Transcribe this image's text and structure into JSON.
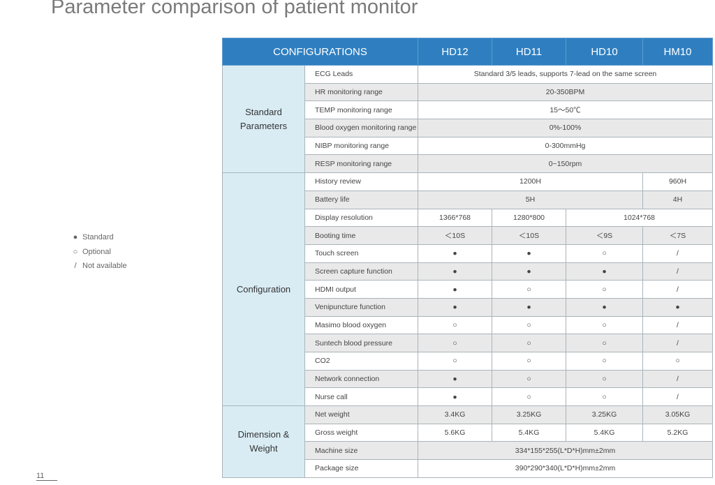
{
  "title": "Parameter comparison of patient monitor",
  "legend": [
    {
      "symbol": "●",
      "label": "Standard"
    },
    {
      "symbol": "○",
      "label": "Optional"
    },
    {
      "symbol": "/",
      "label": "Not available"
    }
  ],
  "page_number": "11",
  "table": {
    "header": [
      "CONFIGURATIONS",
      "HD12",
      "HD11",
      "HD10",
      "HM10"
    ],
    "groups": [
      {
        "name": "Standard Parameters",
        "rows": [
          {
            "parameter": "ECG Leads",
            "cells": [
              "Standard 3/5 leads, supports 7-lead on the same screen"
            ]
          },
          {
            "parameter": "HR monitoring range",
            "cells": [
              "20-350BPM"
            ]
          },
          {
            "parameter": "TEMP monitoring range",
            "cells": [
              "15～50℃"
            ]
          },
          {
            "parameter": "Blood oxygen monitoring range",
            "cells": [
              "0%-100%"
            ]
          },
          {
            "parameter": "NIBP monitoring range",
            "cells": [
              "0-300mmHg"
            ]
          },
          {
            "parameter": "RESP monitoring range",
            "cells": [
              "0~150rpm"
            ]
          }
        ]
      },
      {
        "name": "Configuration",
        "rows": [
          {
            "parameter": "History review",
            "cells": [
              "1200H",
              "960H"
            ]
          },
          {
            "parameter": "Battery life",
            "cells": [
              "5H",
              "4H"
            ]
          },
          {
            "parameter": "Display resolution",
            "cells": [
              "1366*768",
              "1280*800",
              "1024*768"
            ]
          },
          {
            "parameter": "Booting time",
            "cells": [
              "＜10S",
              "＜10S",
              "＜9S",
              "＜7S"
            ]
          },
          {
            "parameter": "Touch screen",
            "cells": [
              "●",
              "●",
              "○",
              "/"
            ]
          },
          {
            "parameter": "Screen capture function",
            "cells": [
              "●",
              "●",
              "●",
              "/"
            ]
          },
          {
            "parameter": "HDMI output",
            "cells": [
              "●",
              "○",
              "○",
              "/"
            ]
          },
          {
            "parameter": "Venipuncture function",
            "cells": [
              "●",
              "●",
              "●",
              "●"
            ]
          },
          {
            "parameter": "Masimo blood oxygen",
            "cells": [
              "○",
              "○",
              "○",
              "/"
            ]
          },
          {
            "parameter": "Suntech blood pressure",
            "cells": [
              "○",
              "○",
              "○",
              "/"
            ]
          },
          {
            "parameter": "CO2",
            "cells": [
              "○",
              "○",
              "○",
              "○"
            ]
          },
          {
            "parameter": "Network connection",
            "cells": [
              "●",
              "○",
              "○",
              "/"
            ]
          },
          {
            "parameter": "Nurse call",
            "cells": [
              "●",
              "○",
              "○",
              "/"
            ]
          }
        ]
      },
      {
        "name": "Dimension & Weight",
        "rows": [
          {
            "parameter": "Net weight",
            "cells": [
              "3.4KG",
              "3.25KG",
              "3.25KG",
              "3.05KG"
            ]
          },
          {
            "parameter": "Gross weight",
            "cells": [
              "5.6KG",
              "5.4KG",
              "5.4KG",
              "5.2KG"
            ]
          },
          {
            "parameter": "Machine size",
            "cells": [
              "334*155*255(L*D*H)mm±2mm"
            ]
          },
          {
            "parameter": "Package size",
            "cells": [
              "390*290*340(L*D*H)mm±2mm"
            ]
          }
        ]
      }
    ]
  }
}
